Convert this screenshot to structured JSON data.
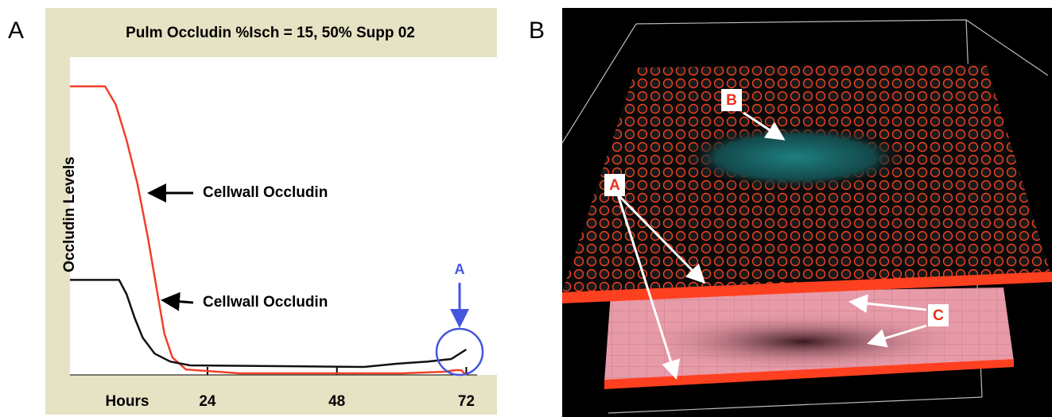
{
  "figure": {
    "panel_labels": [
      "A",
      "B"
    ]
  },
  "chart_data": {
    "type": "line",
    "title": "Pulm Occludin %Isch = 15, 50% Supp 02",
    "y_label": "Occludin Levels",
    "x_label": "Hours",
    "xlim": [
      -1.5,
      74
    ],
    "ylim": [
      0,
      100
    ],
    "xticks": [
      24,
      48,
      72
    ],
    "grid": false,
    "series": [
      {
        "name": "Cellwall Occludin",
        "color": "#f0402a",
        "x": [
          -1.5,
          5,
          7,
          9,
          11,
          13,
          14.5,
          16,
          17.5,
          20,
          30,
          60,
          68,
          70,
          71,
          72
        ],
        "values": [
          90.8,
          90.8,
          85.1,
          73.9,
          60.2,
          42.8,
          27.9,
          13,
          5.5,
          1.7,
          0.5,
          0.5,
          1,
          1.5,
          1.5,
          0
        ]
      },
      {
        "name": "Cellwall Occludin",
        "color": "#111111",
        "x": [
          -1.5,
          7.6,
          9,
          10.5,
          12,
          14.2,
          17.1,
          20.8,
          53,
          59,
          64.8,
          69.2,
          72
        ],
        "values": [
          29.9,
          29.9,
          25.4,
          17.9,
          11.7,
          6.7,
          4.2,
          3,
          2.5,
          3.5,
          4.2,
          5,
          8
        ]
      }
    ],
    "annotations": [
      "A"
    ]
  },
  "render_labels": [
    "B",
    "A",
    "C"
  ]
}
